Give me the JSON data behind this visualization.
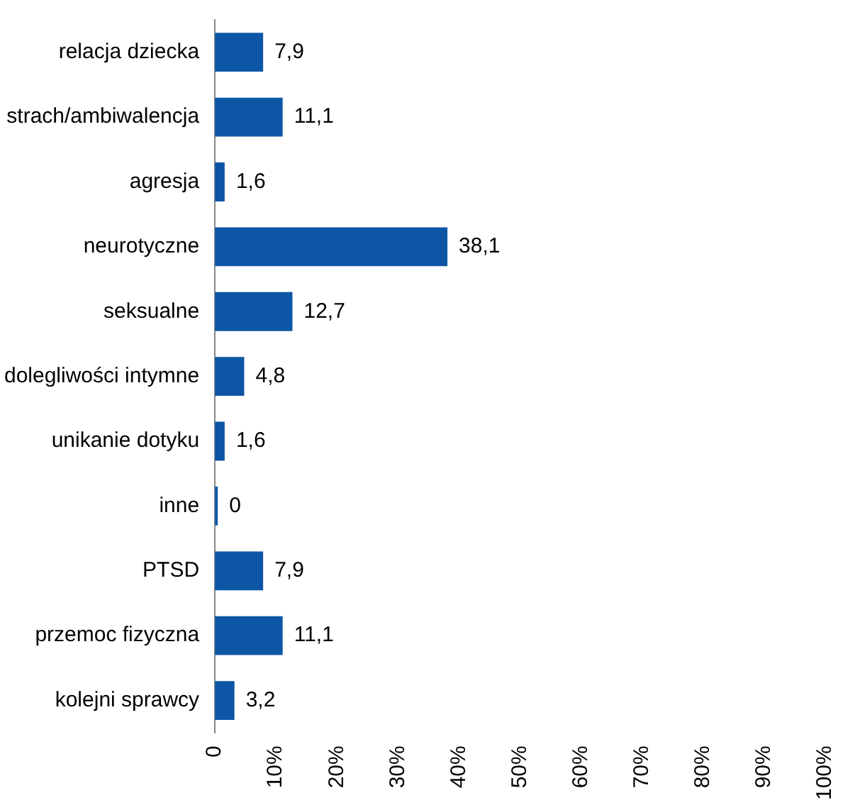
{
  "chart_data": {
    "type": "bar",
    "orientation": "horizontal",
    "categories": [
      "relacja dziecka",
      "strach/ambiwalencja",
      "agresja",
      "neurotyczne",
      "seksualne",
      "dolegliwości intymne",
      "unikanie dotyku",
      "inne",
      "PTSD",
      "przemoc fizyczna",
      "kolejni sprawcy"
    ],
    "values": [
      7.9,
      11.1,
      1.6,
      38.1,
      12.7,
      4.8,
      1.6,
      0,
      7.9,
      11.1,
      3.2
    ],
    "value_labels": [
      "7,9",
      "11,1",
      "1,6",
      "38,1",
      "12,7",
      "4,8",
      "1,6",
      "0",
      "7,9",
      "11,1",
      "3,2"
    ],
    "color": "#0d56a6",
    "xlim": [
      0,
      100
    ],
    "xticks": [
      0,
      {
        "value": 10,
        "label": "10%"
      },
      {
        "value": 20,
        "label": "20%"
      },
      {
        "value": 30,
        "label": "30%"
      },
      {
        "value": 40,
        "label": "40%"
      },
      {
        "value": 50,
        "label": "50%"
      },
      {
        "value": 60,
        "label": "60%"
      },
      {
        "value": 70,
        "label": "70%"
      },
      {
        "value": 80,
        "label": "80%"
      },
      {
        "value": 90,
        "label": "90%"
      },
      {
        "value": 100,
        "label": "100%"
      }
    ],
    "grid": false,
    "legend": false
  }
}
